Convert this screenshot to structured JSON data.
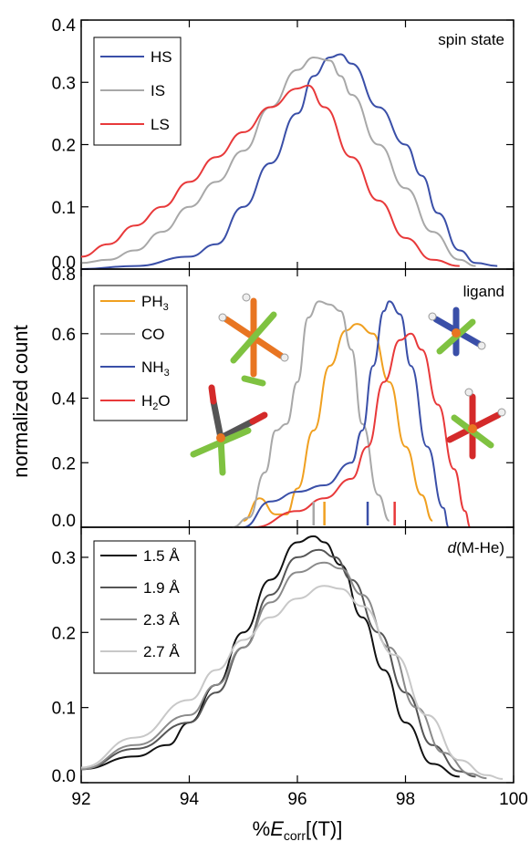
{
  "figure": {
    "ylabel": "normalized count",
    "xlabel_prefix": "%",
    "xlabel_main": "E",
    "xlabel_sub": "corr",
    "xlabel_suffix": "[(T)]"
  },
  "chart_data": [
    {
      "type": "line",
      "panel_label": "spin state",
      "xlim": [
        92,
        100
      ],
      "ylim": [
        0,
        0.4
      ],
      "yticks": [
        0.0,
        0.1,
        0.2,
        0.3,
        0.4
      ],
      "ytick_labels": [
        "0.0",
        "0.1",
        "0.2",
        "0.3",
        "0.4"
      ],
      "legend_position": "top-left",
      "series": [
        {
          "name": "HS",
          "color": "#3a4fa8",
          "x": [
            92,
            93,
            94,
            94.5,
            95,
            95.5,
            96,
            96.3,
            96.6,
            96.8,
            97,
            97.5,
            98,
            98.3,
            98.6,
            99,
            99.3,
            99.7
          ],
          "y": [
            0.0,
            0.005,
            0.02,
            0.04,
            0.1,
            0.17,
            0.25,
            0.31,
            0.34,
            0.345,
            0.33,
            0.26,
            0.2,
            0.15,
            0.09,
            0.03,
            0.01,
            0.005
          ]
        },
        {
          "name": "IS",
          "color": "#a8a8a8",
          "x": [
            92,
            92.5,
            93,
            93.5,
            94,
            94.5,
            95,
            95.5,
            96,
            96.3,
            96.6,
            96.8,
            97,
            97.5,
            98,
            98.5,
            99,
            99.3
          ],
          "y": [
            0.01,
            0.015,
            0.03,
            0.06,
            0.1,
            0.14,
            0.19,
            0.26,
            0.32,
            0.34,
            0.335,
            0.31,
            0.28,
            0.2,
            0.13,
            0.06,
            0.015,
            0.005
          ]
        },
        {
          "name": "LS",
          "color": "#e8393a",
          "x": [
            92,
            92.5,
            93,
            93.5,
            94,
            94.5,
            95,
            95.5,
            96,
            96.2,
            96.5,
            97,
            97.5,
            98,
            98.5,
            99
          ],
          "y": [
            0.02,
            0.04,
            0.07,
            0.1,
            0.14,
            0.18,
            0.22,
            0.26,
            0.29,
            0.295,
            0.26,
            0.18,
            0.11,
            0.05,
            0.015,
            0.005
          ]
        }
      ]
    },
    {
      "type": "line",
      "panel_label": "ligand",
      "xlim": [
        92,
        100
      ],
      "ylim": [
        0,
        0.8
      ],
      "yticks": [
        0.0,
        0.2,
        0.4,
        0.6,
        0.8
      ],
      "ytick_labels": [
        "0.0",
        "0.2",
        "0.4",
        "0.6",
        "0.8"
      ],
      "legend_position": "top-left",
      "series": [
        {
          "name": "PH",
          "name_sub": "3",
          "color": "#f0a020",
          "x": [
            95,
            95.3,
            95.6,
            95.8,
            96,
            96.3,
            96.6,
            96.9,
            97.1,
            97.4,
            97.7,
            98,
            98.3,
            98.5
          ],
          "y": [
            0.02,
            0.09,
            0.04,
            0.04,
            0.12,
            0.3,
            0.5,
            0.61,
            0.63,
            0.6,
            0.45,
            0.25,
            0.1,
            0.02
          ]
        },
        {
          "name": "CO",
          "name_sub": "",
          "color": "#a8a8a8",
          "x": [
            94.8,
            95.1,
            95.4,
            95.6,
            95.8,
            96,
            96.2,
            96.4,
            96.6,
            96.8,
            97,
            97.2,
            97.5,
            97.7
          ],
          "y": [
            0.0,
            0.03,
            0.17,
            0.3,
            0.32,
            0.45,
            0.65,
            0.7,
            0.69,
            0.67,
            0.55,
            0.32,
            0.1,
            0.02
          ]
        },
        {
          "name": "NH",
          "name_sub": "3",
          "color": "#3a4fa8",
          "x": [
            95,
            95.5,
            96,
            96.5,
            97,
            97.2,
            97.4,
            97.6,
            97.7,
            97.9,
            98.1,
            98.4,
            98.7,
            98.8
          ],
          "y": [
            0.0,
            0.08,
            0.11,
            0.13,
            0.2,
            0.3,
            0.5,
            0.67,
            0.7,
            0.66,
            0.5,
            0.25,
            0.06,
            0.0
          ]
        },
        {
          "name": "H",
          "name_sub": "2",
          "name_suffix": "O",
          "color": "#e8393a",
          "x": [
            95.2,
            96,
            96.5,
            97,
            97.3,
            97.6,
            97.9,
            98.1,
            98.3,
            98.6,
            98.9,
            99.1,
            99.2
          ],
          "y": [
            0.0,
            0.05,
            0.09,
            0.15,
            0.25,
            0.45,
            0.58,
            0.6,
            0.55,
            0.38,
            0.18,
            0.05,
            0.0
          ]
        }
      ],
      "annotations": {
        "tick_marks": [
          {
            "x": 96.3,
            "color": "#a8a8a8"
          },
          {
            "x": 96.5,
            "color": "#f0a020"
          },
          {
            "x": 97.3,
            "color": "#3a4fa8"
          },
          {
            "x": 97.8,
            "color": "#e8393a"
          }
        ]
      },
      "molecule_icons": [
        "PH3-complex-icon",
        "CO-complex-icon",
        "NH3-complex-icon",
        "H2O-complex-icon"
      ]
    },
    {
      "type": "line",
      "panel_label_prefix": "d",
      "panel_label": "(M-He)",
      "xlim": [
        92,
        100
      ],
      "ylim": [
        0,
        0.34
      ],
      "yticks": [
        0.0,
        0.1,
        0.2,
        0.3
      ],
      "ytick_labels": [
        "0.0",
        "0.1",
        "0.2",
        "0.3"
      ],
      "xticks": [
        92,
        94,
        96,
        98,
        100
      ],
      "xtick_labels": [
        "92",
        "94",
        "96",
        "98",
        "100"
      ],
      "legend_position": "top-left",
      "series": [
        {
          "name": "1.5 Å",
          "color": "#111111",
          "x": [
            92,
            93,
            93.6,
            94,
            94.5,
            95,
            95.5,
            96,
            96.3,
            96.5,
            96.8,
            97.2,
            97.6,
            98,
            98.5,
            99
          ],
          "y": [
            0.018,
            0.035,
            0.05,
            0.08,
            0.13,
            0.2,
            0.27,
            0.32,
            0.328,
            0.32,
            0.29,
            0.22,
            0.15,
            0.08,
            0.025,
            0.008
          ]
        },
        {
          "name": "1.9 Å",
          "color": "#555555",
          "x": [
            92,
            93,
            94,
            94.5,
            95,
            95.5,
            96,
            96.4,
            96.7,
            97,
            97.5,
            98,
            98.5,
            99,
            99.3
          ],
          "y": [
            0.018,
            0.045,
            0.08,
            0.12,
            0.18,
            0.25,
            0.3,
            0.31,
            0.3,
            0.27,
            0.2,
            0.12,
            0.05,
            0.015,
            0.008
          ]
        },
        {
          "name": "2.3 Å",
          "color": "#8a8a8a",
          "x": [
            92,
            93,
            94,
            94.5,
            95,
            95.5,
            96,
            96.5,
            96.8,
            97.2,
            97.7,
            98.2,
            98.7,
            99.2,
            99.5
          ],
          "y": [
            0.018,
            0.05,
            0.09,
            0.13,
            0.18,
            0.24,
            0.28,
            0.293,
            0.285,
            0.25,
            0.18,
            0.1,
            0.04,
            0.012,
            0.006
          ]
        },
        {
          "name": "2.7 Å",
          "color": "#c8c8c8",
          "x": [
            92,
            93,
            94,
            94.5,
            95,
            95.5,
            96,
            96.5,
            96.8,
            97.2,
            97.8,
            98.4,
            99,
            99.5,
            99.8
          ],
          "y": [
            0.02,
            0.06,
            0.11,
            0.15,
            0.19,
            0.22,
            0.245,
            0.262,
            0.258,
            0.235,
            0.17,
            0.09,
            0.03,
            0.01,
            0.005
          ]
        }
      ]
    }
  ]
}
